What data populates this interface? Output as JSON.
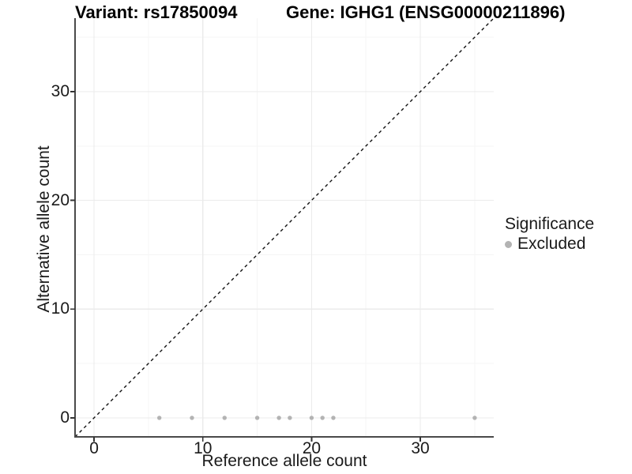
{
  "title": {
    "variant": "Variant: rs17850094",
    "gene": "Gene: IGHG1 (ENSG00000211896)"
  },
  "legend": {
    "title": "Significance",
    "items": [
      {
        "label": "Excluded",
        "color": "#b3b3b3"
      }
    ]
  },
  "chart_data": {
    "type": "scatter",
    "title": "Variant: rs17850094 / Gene: IGHG1 (ENSG00000211896)",
    "xlabel": "Reference allele count",
    "ylabel": "Alternative allele count",
    "xlim": [
      -1.75,
      36.75
    ],
    "ylim": [
      -1.75,
      36.75
    ],
    "x_ticks": [
      0,
      10,
      20,
      30
    ],
    "y_ticks": [
      0,
      10,
      20,
      30
    ],
    "x_minor_ticks": [
      5,
      15,
      25,
      35
    ],
    "y_minor_ticks": [
      5,
      15,
      25,
      35
    ],
    "grid": "major+minor",
    "legend_position": "right",
    "series": [
      {
        "name": "Excluded",
        "color": "#b3b3b3",
        "x": [
          6,
          9,
          12,
          15,
          17,
          18,
          20,
          21,
          22,
          35
        ],
        "y": [
          0,
          0,
          0,
          0,
          0,
          0,
          0,
          0,
          0,
          0
        ]
      }
    ],
    "reference_line": {
      "type": "identity-diagonal",
      "style": "dashed",
      "color": "#111111"
    }
  },
  "colors": {
    "background": "#ffffff",
    "grid_major": "#ebebeb",
    "grid_minor": "#f5f5f5",
    "axis": "#4a4a4a",
    "tick": "#333333",
    "text": "#1a1a1a",
    "point": "#b3b3b3"
  }
}
